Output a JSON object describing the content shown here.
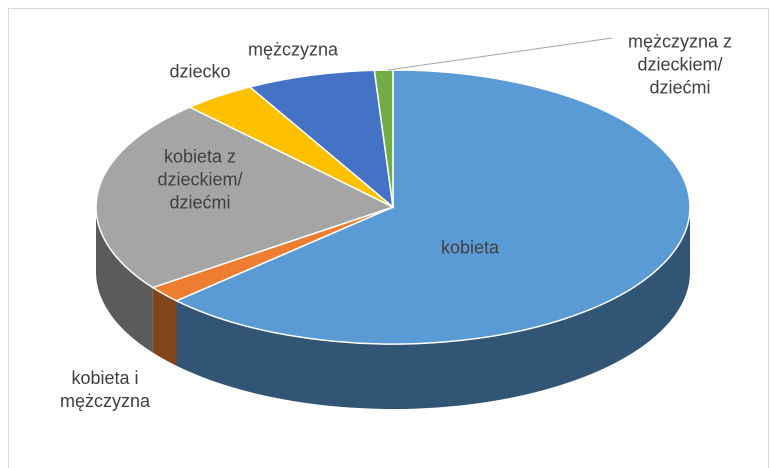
{
  "chart_data": {
    "type": "pie",
    "categories": [
      "kobieta",
      "kobieta i mężczyzna",
      "kobieta z dzieckiem/ dziećmi",
      "dziecko",
      "mężczyzna",
      "mężczyzna z dzieckiem/ dziećmi"
    ],
    "values": [
      63,
      2,
      23,
      4,
      7,
      1
    ],
    "colors": [
      "#5b9bd5",
      "#ed7d31",
      "#a5a5a5",
      "#ffc000",
      "#4472c4",
      "#70ad47"
    ]
  }
}
